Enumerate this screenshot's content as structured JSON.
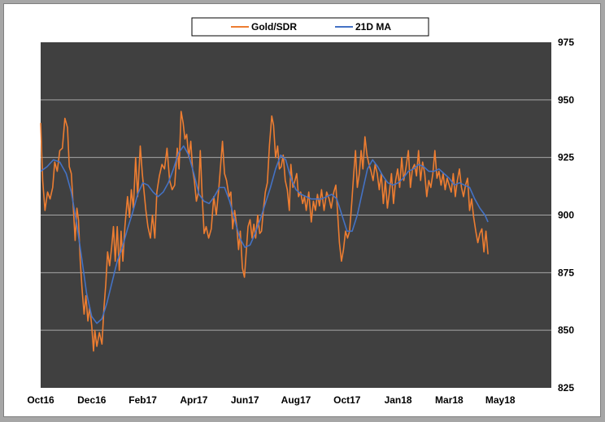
{
  "chart_data": {
    "type": "line",
    "title": "",
    "xlabel": "",
    "ylabel": "",
    "ylim": [
      825,
      975
    ],
    "yticks": [
      825,
      850,
      875,
      900,
      925,
      950,
      975
    ],
    "y_axis_side": "right",
    "grid": "horizontal",
    "legend_position": "top-center",
    "x_range": [
      0,
      20.0
    ],
    "x_ticks": [
      {
        "label": "Oct16",
        "month": 0
      },
      {
        "label": "Dec16",
        "month": 2
      },
      {
        "label": "Feb17",
        "month": 4
      },
      {
        "label": "Apr17",
        "month": 6
      },
      {
        "label": "Jun17",
        "month": 8
      },
      {
        "label": "Aug17",
        "month": 10
      },
      {
        "label": "Oct17",
        "month": 12
      },
      {
        "label": "Jan18",
        "month": 14
      },
      {
        "label": "Mar18",
        "month": 16
      },
      {
        "label": "May18",
        "month": 18
      }
    ],
    "colors": {
      "plot_background": "#404040",
      "grid": "#a6a6a6",
      "gold_sdr": "#ed7d31",
      "ma21": "#4472c4"
    },
    "series": [
      {
        "name": "Gold/SDR",
        "color": "#ed7d31",
        "points": [
          [
            0.0,
            940
          ],
          [
            0.08,
            915
          ],
          [
            0.17,
            902
          ],
          [
            0.27,
            910
          ],
          [
            0.37,
            907
          ],
          [
            0.47,
            912
          ],
          [
            0.55,
            923
          ],
          [
            0.65,
            919
          ],
          [
            0.75,
            928
          ],
          [
            0.85,
            929
          ],
          [
            0.95,
            942
          ],
          [
            1.05,
            938
          ],
          [
            1.12,
            921
          ],
          [
            1.2,
            918
          ],
          [
            1.28,
            903
          ],
          [
            1.35,
            889
          ],
          [
            1.42,
            903
          ],
          [
            1.48,
            898
          ],
          [
            1.55,
            880
          ],
          [
            1.62,
            868
          ],
          [
            1.7,
            857
          ],
          [
            1.77,
            865
          ],
          [
            1.85,
            854
          ],
          [
            1.92,
            860
          ],
          [
            2.0,
            852
          ],
          [
            2.07,
            841
          ],
          [
            2.12,
            850
          ],
          [
            2.2,
            843
          ],
          [
            2.3,
            849
          ],
          [
            2.4,
            844
          ],
          [
            2.48,
            860
          ],
          [
            2.55,
            870
          ],
          [
            2.62,
            884
          ],
          [
            2.7,
            878
          ],
          [
            2.78,
            886
          ],
          [
            2.85,
            895
          ],
          [
            2.92,
            880
          ],
          [
            3.0,
            895
          ],
          [
            3.08,
            876
          ],
          [
            3.15,
            893
          ],
          [
            3.22,
            880
          ],
          [
            3.3,
            895
          ],
          [
            3.4,
            908
          ],
          [
            3.48,
            899
          ],
          [
            3.55,
            911
          ],
          [
            3.63,
            903
          ],
          [
            3.72,
            925
          ],
          [
            3.8,
            908
          ],
          [
            3.9,
            930
          ],
          [
            3.98,
            918
          ],
          [
            4.05,
            910
          ],
          [
            4.12,
            902
          ],
          [
            4.2,
            895
          ],
          [
            4.3,
            890
          ],
          [
            4.38,
            900
          ],
          [
            4.47,
            890
          ],
          [
            4.55,
            910
          ],
          [
            4.65,
            917
          ],
          [
            4.75,
            922
          ],
          [
            4.85,
            920
          ],
          [
            4.95,
            929
          ],
          [
            5.05,
            915
          ],
          [
            5.15,
            911
          ],
          [
            5.25,
            913
          ],
          [
            5.35,
            929
          ],
          [
            5.42,
            920
          ],
          [
            5.5,
            945
          ],
          [
            5.58,
            940
          ],
          [
            5.65,
            933
          ],
          [
            5.72,
            935
          ],
          [
            5.8,
            925
          ],
          [
            5.88,
            932
          ],
          [
            5.95,
            920
          ],
          [
            6.02,
            915
          ],
          [
            6.1,
            906
          ],
          [
            6.18,
            910
          ],
          [
            6.25,
            928
          ],
          [
            6.32,
            910
          ],
          [
            6.4,
            892
          ],
          [
            6.48,
            895
          ],
          [
            6.58,
            890
          ],
          [
            6.68,
            894
          ],
          [
            6.78,
            908
          ],
          [
            6.88,
            900
          ],
          [
            6.98,
            912
          ],
          [
            7.05,
            922
          ],
          [
            7.12,
            932
          ],
          [
            7.2,
            918
          ],
          [
            7.28,
            915
          ],
          [
            7.38,
            908
          ],
          [
            7.45,
            910
          ],
          [
            7.52,
            894
          ],
          [
            7.6,
            902
          ],
          [
            7.68,
            895
          ],
          [
            7.75,
            885
          ],
          [
            7.82,
            893
          ],
          [
            7.9,
            877
          ],
          [
            7.98,
            873
          ],
          [
            8.05,
            884
          ],
          [
            8.12,
            895
          ],
          [
            8.2,
            898
          ],
          [
            8.28,
            890
          ],
          [
            8.35,
            896
          ],
          [
            8.42,
            890
          ],
          [
            8.5,
            900
          ],
          [
            8.58,
            892
          ],
          [
            8.65,
            893
          ],
          [
            8.72,
            902
          ],
          [
            8.8,
            910
          ],
          [
            8.88,
            914
          ],
          [
            8.96,
            930
          ],
          [
            9.05,
            943
          ],
          [
            9.12,
            939
          ],
          [
            9.2,
            925
          ],
          [
            9.28,
            930
          ],
          [
            9.35,
            920
          ],
          [
            9.42,
            921
          ],
          [
            9.5,
            926
          ],
          [
            9.58,
            915
          ],
          [
            9.66,
            911
          ],
          [
            9.74,
            902
          ],
          [
            9.8,
            922
          ],
          [
            9.88,
            912
          ],
          [
            9.96,
            915
          ],
          [
            10.03,
            918
          ],
          [
            10.1,
            908
          ],
          [
            10.18,
            910
          ],
          [
            10.26,
            905
          ],
          [
            10.33,
            908
          ],
          [
            10.4,
            902
          ],
          [
            10.5,
            910
          ],
          [
            10.6,
            897
          ],
          [
            10.68,
            906
          ],
          [
            10.76,
            902
          ],
          [
            10.84,
            909
          ],
          [
            10.92,
            904
          ],
          [
            11.0,
            911
          ],
          [
            11.1,
            902
          ],
          [
            11.2,
            910
          ],
          [
            11.3,
            907
          ],
          [
            11.38,
            903
          ],
          [
            11.48,
            910
          ],
          [
            11.56,
            913
          ],
          [
            11.64,
            899
          ],
          [
            11.7,
            888
          ],
          [
            11.78,
            880
          ],
          [
            11.86,
            885
          ],
          [
            11.94,
            893
          ],
          [
            12.02,
            890
          ],
          [
            12.1,
            893
          ],
          [
            12.18,
            905
          ],
          [
            12.26,
            918
          ],
          [
            12.33,
            928
          ],
          [
            12.4,
            912
          ],
          [
            12.48,
            918
          ],
          [
            12.55,
            928
          ],
          [
            12.62,
            920
          ],
          [
            12.7,
            934
          ],
          [
            12.78,
            926
          ],
          [
            12.86,
            922
          ],
          [
            12.94,
            919
          ],
          [
            13.02,
            915
          ],
          [
            13.1,
            922
          ],
          [
            13.18,
            918
          ],
          [
            13.26,
            911
          ],
          [
            13.34,
            918
          ],
          [
            13.42,
            905
          ],
          [
            13.5,
            915
          ],
          [
            13.58,
            903
          ],
          [
            13.66,
            910
          ],
          [
            13.74,
            918
          ],
          [
            13.82,
            905
          ],
          [
            13.9,
            915
          ],
          [
            13.98,
            920
          ],
          [
            14.06,
            912
          ],
          [
            14.14,
            925
          ],
          [
            14.22,
            915
          ],
          [
            14.3,
            920
          ],
          [
            14.4,
            928
          ],
          [
            14.48,
            912
          ],
          [
            14.56,
            920
          ],
          [
            14.64,
            922
          ],
          [
            14.72,
            917
          ],
          [
            14.8,
            928
          ],
          [
            14.88,
            915
          ],
          [
            14.96,
            923
          ],
          [
            15.04,
            918
          ],
          [
            15.12,
            908
          ],
          [
            15.2,
            915
          ],
          [
            15.28,
            912
          ],
          [
            15.36,
            918
          ],
          [
            15.44,
            928
          ],
          [
            15.52,
            916
          ],
          [
            15.6,
            919
          ],
          [
            15.68,
            913
          ],
          [
            15.76,
            918
          ],
          [
            15.84,
            911
          ],
          [
            15.92,
            916
          ],
          [
            16.0,
            913
          ],
          [
            16.08,
            910
          ],
          [
            16.16,
            918
          ],
          [
            16.24,
            908
          ],
          [
            16.32,
            915
          ],
          [
            16.4,
            920
          ],
          [
            16.48,
            912
          ],
          [
            16.56,
            908
          ],
          [
            16.64,
            913
          ],
          [
            16.72,
            916
          ],
          [
            16.8,
            902
          ],
          [
            16.88,
            907
          ],
          [
            16.96,
            899
          ],
          [
            17.04,
            893
          ],
          [
            17.12,
            888
          ],
          [
            17.2,
            892
          ],
          [
            17.28,
            894
          ],
          [
            17.36,
            884
          ],
          [
            17.44,
            893
          ],
          [
            17.52,
            883
          ]
        ]
      },
      {
        "name": "21D MA",
        "color": "#4472c4",
        "points": [
          [
            0.0,
            919
          ],
          [
            0.25,
            921
          ],
          [
            0.5,
            924
          ],
          [
            0.75,
            923
          ],
          [
            1.0,
            918
          ],
          [
            1.2,
            910
          ],
          [
            1.4,
            897
          ],
          [
            1.6,
            882
          ],
          [
            1.8,
            866
          ],
          [
            2.0,
            856
          ],
          [
            2.2,
            853
          ],
          [
            2.4,
            855
          ],
          [
            2.6,
            862
          ],
          [
            2.8,
            871
          ],
          [
            3.0,
            880
          ],
          [
            3.2,
            886
          ],
          [
            3.4,
            894
          ],
          [
            3.6,
            901
          ],
          [
            3.8,
            909
          ],
          [
            4.0,
            914
          ],
          [
            4.2,
            913
          ],
          [
            4.4,
            910
          ],
          [
            4.6,
            908
          ],
          [
            4.8,
            910
          ],
          [
            5.0,
            914
          ],
          [
            5.2,
            920
          ],
          [
            5.4,
            927
          ],
          [
            5.6,
            930
          ],
          [
            5.8,
            926
          ],
          [
            6.0,
            918
          ],
          [
            6.2,
            909
          ],
          [
            6.4,
            906
          ],
          [
            6.6,
            905
          ],
          [
            6.8,
            908
          ],
          [
            7.0,
            912
          ],
          [
            7.2,
            912
          ],
          [
            7.4,
            906
          ],
          [
            7.6,
            898
          ],
          [
            7.8,
            890
          ],
          [
            8.0,
            886
          ],
          [
            8.2,
            887
          ],
          [
            8.4,
            892
          ],
          [
            8.6,
            898
          ],
          [
            8.8,
            905
          ],
          [
            9.0,
            912
          ],
          [
            9.2,
            920
          ],
          [
            9.4,
            926
          ],
          [
            9.6,
            924
          ],
          [
            9.8,
            916
          ],
          [
            10.0,
            911
          ],
          [
            10.2,
            909
          ],
          [
            10.4,
            908
          ],
          [
            10.6,
            907
          ],
          [
            10.8,
            907
          ],
          [
            11.0,
            907
          ],
          [
            11.2,
            908
          ],
          [
            11.4,
            909
          ],
          [
            11.6,
            907
          ],
          [
            11.8,
            900
          ],
          [
            12.0,
            893
          ],
          [
            12.2,
            893
          ],
          [
            12.4,
            900
          ],
          [
            12.6,
            910
          ],
          [
            12.8,
            920
          ],
          [
            13.0,
            924
          ],
          [
            13.2,
            921
          ],
          [
            13.4,
            917
          ],
          [
            13.6,
            914
          ],
          [
            13.8,
            913
          ],
          [
            14.0,
            914
          ],
          [
            14.2,
            916
          ],
          [
            14.4,
            919
          ],
          [
            14.6,
            920
          ],
          [
            14.8,
            922
          ],
          [
            15.0,
            921
          ],
          [
            15.2,
            919
          ],
          [
            15.4,
            919
          ],
          [
            15.6,
            920
          ],
          [
            15.8,
            918
          ],
          [
            16.0,
            916
          ],
          [
            16.2,
            913
          ],
          [
            16.4,
            914
          ],
          [
            16.6,
            913
          ],
          [
            16.8,
            912
          ],
          [
            17.0,
            907
          ],
          [
            17.2,
            903
          ],
          [
            17.4,
            900
          ],
          [
            17.52,
            897
          ]
        ]
      }
    ]
  }
}
